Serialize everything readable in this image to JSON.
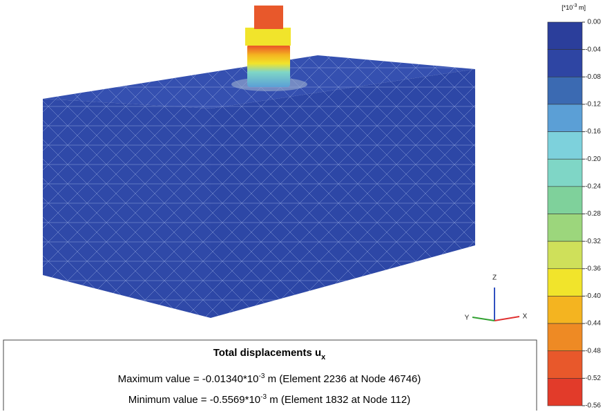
{
  "legend": {
    "unit": {
      "prefix": "[*10",
      "exponent": "-3",
      "suffix": " m]"
    },
    "labels": [
      "0.00",
      "-0.04",
      "-0.08",
      "-0.12",
      "-0.16",
      "-0.20",
      "-0.24",
      "-0.28",
      "-0.32",
      "-0.36",
      "-0.40",
      "-0.44",
      "-0.48",
      "-0.52",
      "-0.56"
    ],
    "colors": [
      "#2b3e9b",
      "#2e45a3",
      "#3b6ab2",
      "#5b9fd6",
      "#7dd1dc",
      "#7fd6c6",
      "#7fd19b",
      "#9cd67c",
      "#cfe05a",
      "#f1e42b",
      "#f4b420",
      "#ee8a24",
      "#e8582b",
      "#e23b2a"
    ]
  },
  "axes": {
    "z": "Z",
    "y": "Y",
    "x": "X"
  },
  "info": {
    "title": {
      "main": "Total displacements u",
      "subscript": "x"
    },
    "max": {
      "prefix": "Maximum value = -0.01340*10",
      "exponent": "-3",
      "suffix": " m (Element 2236 at Node 46746)"
    },
    "min": {
      "prefix": "Minimum value = -0.5569*10",
      "exponent": "-3",
      "suffix": " m (Element 1832 at Node 112)"
    }
  }
}
